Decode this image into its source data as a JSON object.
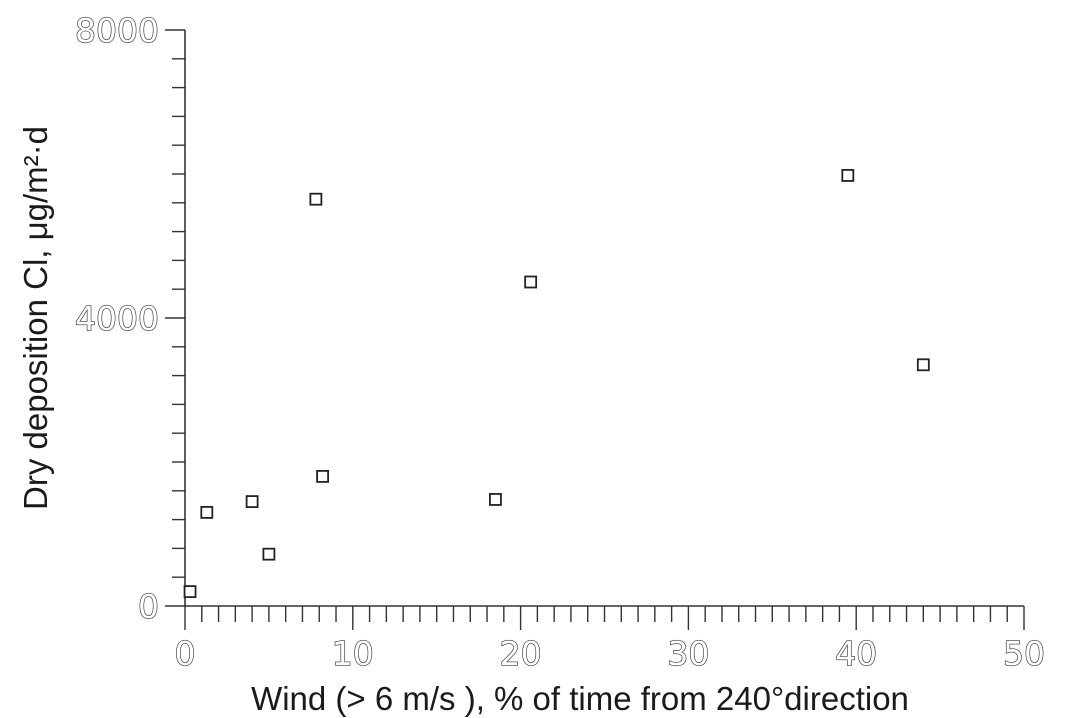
{
  "chart_data": {
    "type": "scatter",
    "xlabel": "Wind (> 6 m/s ),  % of time from 240°direction",
    "ylabel": "Dry deposition Cl,  μg/m²·d",
    "xlim": [
      0,
      50
    ],
    "ylim": [
      0,
      8000
    ],
    "x_ticks": [
      "0",
      "10",
      "20",
      "30",
      "40",
      "50"
    ],
    "y_ticks": [
      "0",
      "4000",
      "8000"
    ],
    "marker": "open-square",
    "grid": false,
    "points": [
      {
        "x": 0.3,
        "y": 200
      },
      {
        "x": 1.3,
        "y": 1300
      },
      {
        "x": 4.0,
        "y": 1450
      },
      {
        "x": 5.0,
        "y": 720
      },
      {
        "x": 7.8,
        "y": 5650
      },
      {
        "x": 8.2,
        "y": 1800
      },
      {
        "x": 18.5,
        "y": 1480
      },
      {
        "x": 20.6,
        "y": 4500
      },
      {
        "x": 39.5,
        "y": 5980
      },
      {
        "x": 44.0,
        "y": 3350
      }
    ]
  }
}
